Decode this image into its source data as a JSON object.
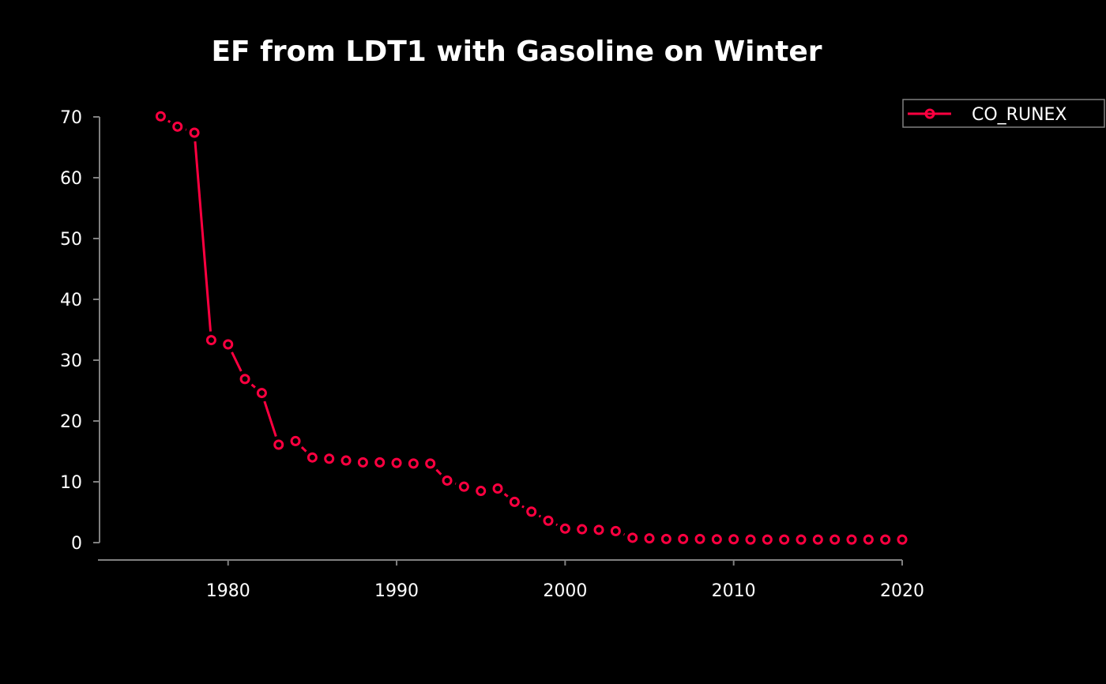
{
  "chart_data": {
    "type": "line",
    "title": "EF from LDT1 with Gasoline on Winter",
    "xlabel": "",
    "ylabel": "",
    "xlim": [
      1974.2,
      2020
    ],
    "ylim": [
      0,
      70
    ],
    "x_ticks": [
      1980,
      1990,
      2000,
      2010,
      2020
    ],
    "y_ticks": [
      0,
      10,
      20,
      30,
      40,
      50,
      60,
      70
    ],
    "grid": false,
    "legend_position": "top-right",
    "colors": {
      "background": "#000000",
      "series": "#ff0040",
      "axis": "#808080",
      "text": "#ffffff"
    },
    "x": [
      1976,
      1977,
      1978,
      1979,
      1980,
      1981,
      1982,
      1983,
      1984,
      1985,
      1986,
      1987,
      1988,
      1989,
      1990,
      1991,
      1992,
      1993,
      1994,
      1995,
      1996,
      1997,
      1998,
      1999,
      2000,
      2001,
      2002,
      2003,
      2004,
      2005,
      2006,
      2007,
      2008,
      2009,
      2010,
      2011,
      2012,
      2013,
      2014,
      2015,
      2016,
      2017,
      2018,
      2019,
      2020
    ],
    "series": [
      {
        "name": "CO_RUNEX",
        "marker": "circle",
        "values": [
          70.1,
          68.4,
          67.4,
          33.3,
          32.6,
          26.9,
          24.6,
          16.1,
          16.7,
          14.0,
          13.8,
          13.5,
          13.2,
          13.2,
          13.1,
          13.0,
          13.0,
          10.2,
          9.2,
          8.5,
          8.9,
          6.7,
          5.1,
          3.6,
          2.3,
          2.2,
          2.1,
          1.9,
          0.8,
          0.7,
          0.6,
          0.6,
          0.6,
          0.55,
          0.55,
          0.5,
          0.5,
          0.5,
          0.5,
          0.5,
          0.5,
          0.5,
          0.5,
          0.5,
          0.5
        ]
      }
    ]
  }
}
